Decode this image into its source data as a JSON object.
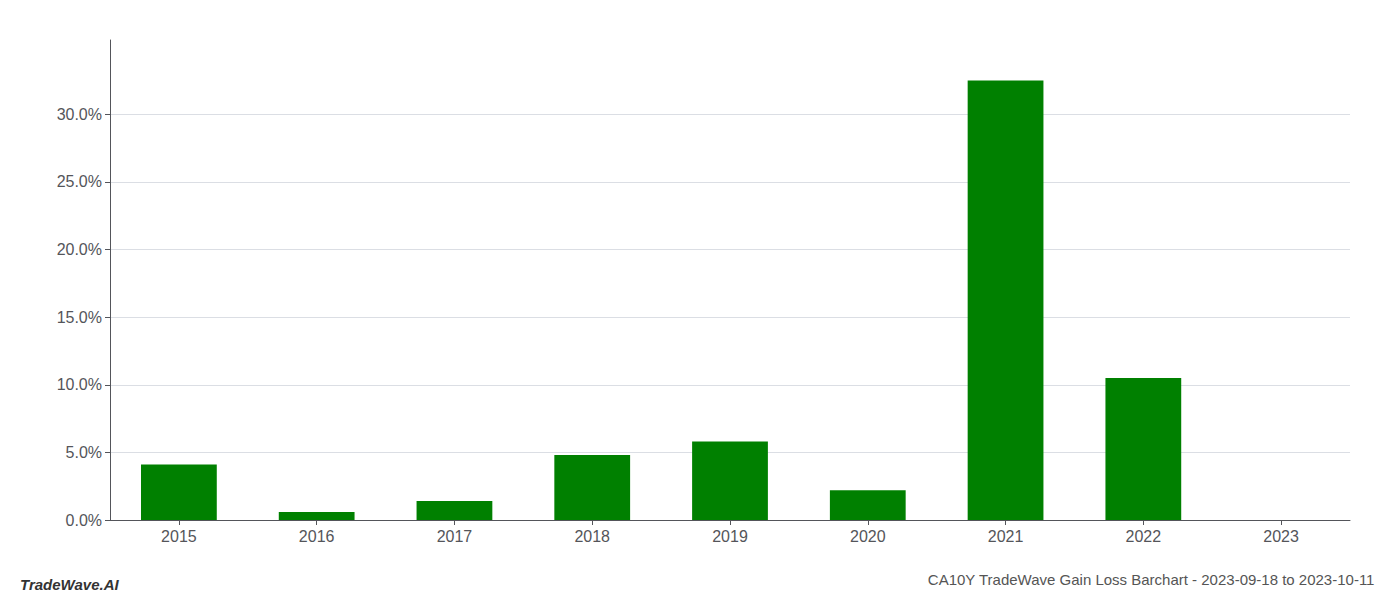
{
  "chart_data": {
    "type": "bar",
    "title": "CA10Y TradeWave Gain Loss Barchart - 2023-09-18 to 2023-10-11",
    "annotations": [
      "TradeWave.AI"
    ],
    "categories": [
      "2015",
      "2016",
      "2017",
      "2018",
      "2019",
      "2020",
      "2021",
      "2022",
      "2023"
    ],
    "values": [
      0.041,
      0.006,
      0.014,
      0.048,
      0.058,
      0.022,
      0.325,
      0.105,
      0.0
    ],
    "color": "#008000",
    "ylim": [
      0,
      0.355
    ],
    "yticks": [
      {
        "value": 0.0,
        "label": "0.0%"
      },
      {
        "value": 0.05,
        "label": "5.0%"
      },
      {
        "value": 0.1,
        "label": "10.0%"
      },
      {
        "value": 0.15,
        "label": "15.0%"
      },
      {
        "value": 0.2,
        "label": "20.0%"
      },
      {
        "value": 0.25,
        "label": "25.0%"
      },
      {
        "value": 0.3,
        "label": "30.0%"
      }
    ],
    "grid": true
  }
}
